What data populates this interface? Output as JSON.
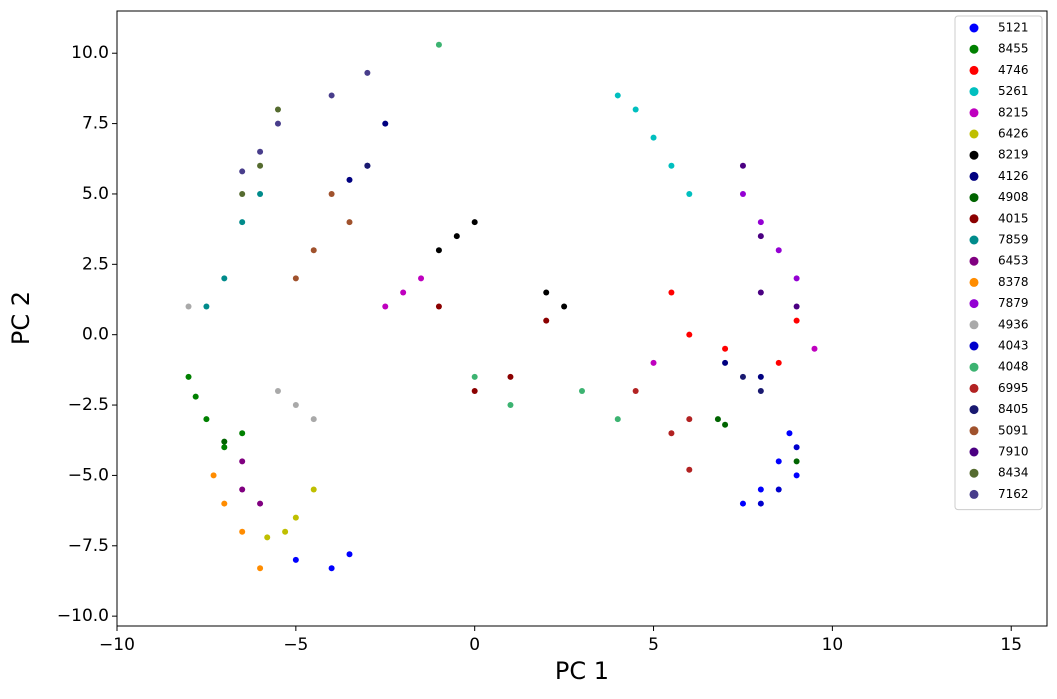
{
  "chart_data": {
    "type": "scatter",
    "x_label": "PC 1",
    "y_label": "PC 2",
    "xlim": [
      -10,
      16
    ],
    "ylim": [
      -10.35,
      11.5
    ],
    "xticks": [
      {
        "value": -10,
        "label": "−10"
      },
      {
        "value": -5,
        "label": "−5"
      },
      0,
      5,
      10,
      15
    ],
    "yticks": [
      {
        "value": -10,
        "label": "−10.0"
      },
      {
        "value": -7.5,
        "label": "−7.5"
      },
      {
        "value": -5,
        "label": "−5.0"
      },
      {
        "value": -2.5,
        "label": "−2.5"
      },
      {
        "value": 0,
        "label": "0.0"
      },
      2.5,
      {
        "value": 5,
        "label": "5.0"
      },
      7.5,
      {
        "value": 10,
        "label": "10.0"
      }
    ],
    "legend": "upper right",
    "series": [
      {
        "name": "5121",
        "color": "#0000ff",
        "x": [
          8,
          8.5,
          9,
          7.5,
          8.8,
          -4,
          -3.5,
          -5
        ],
        "values": [
          -5.5,
          -4.5,
          -5,
          -6,
          -3.5,
          -8.3,
          -7.8,
          -8
        ]
      },
      {
        "name": "8455",
        "color": "#008000",
        "x": [
          -7.5,
          -7,
          -8,
          -6.5,
          -7.8
        ],
        "values": [
          -3,
          -4,
          -1.5,
          -3.5,
          -2.2
        ]
      },
      {
        "name": "4746",
        "color": "#ff0000",
        "x": [
          6,
          7,
          9,
          5.5,
          8.5
        ],
        "values": [
          0,
          -0.5,
          0.5,
          1.5,
          -1
        ]
      },
      {
        "name": "5261",
        "color": "#00bfbf",
        "x": [
          4.5,
          5,
          5.5,
          4,
          6
        ],
        "values": [
          8,
          7,
          6,
          8.5,
          5
        ]
      },
      {
        "name": "8215",
        "color": "#bf00bf",
        "x": [
          -2,
          -1.5,
          -2.5,
          9.5,
          5
        ],
        "values": [
          1.5,
          2,
          1,
          -0.5,
          -1
        ]
      },
      {
        "name": "6426",
        "color": "#bfbf00",
        "x": [
          -5.3,
          -5,
          -4.5,
          -5.8
        ],
        "values": [
          -7,
          -6.5,
          -5.5,
          -7.2
        ]
      },
      {
        "name": "8219",
        "color": "#000000",
        "x": [
          -0.5,
          0,
          -1,
          2,
          2.5
        ],
        "values": [
          3.5,
          4,
          3,
          1.5,
          1
        ]
      },
      {
        "name": "4126",
        "color": "#000080",
        "x": [
          -2.5,
          -3,
          -3.5,
          8,
          7
        ],
        "values": [
          7.5,
          6,
          5.5,
          -1.5,
          -1
        ]
      },
      {
        "name": "4908",
        "color": "#006400",
        "x": [
          7,
          6.8,
          9,
          -7
        ],
        "values": [
          -3.2,
          -3,
          -4.5,
          -3.8
        ]
      },
      {
        "name": "4015",
        "color": "#8b0000",
        "x": [
          0,
          1,
          -1,
          2
        ],
        "values": [
          -2,
          -1.5,
          1,
          0.5
        ]
      },
      {
        "name": "7859",
        "color": "#008b8b",
        "x": [
          -6.5,
          -7,
          -6,
          -7.5
        ],
        "values": [
          4,
          2,
          5,
          1
        ]
      },
      {
        "name": "6453",
        "color": "#800080",
        "x": [
          -6.5,
          -6,
          -6.5
        ],
        "values": [
          -5.5,
          -6,
          -4.5
        ]
      },
      {
        "name": "8378",
        "color": "#ff8c00",
        "x": [
          -7,
          -7.3,
          -6.5,
          -6
        ],
        "values": [
          -6,
          -5,
          -7,
          -8.3
        ]
      },
      {
        "name": "7879",
        "color": "#9400d3",
        "x": [
          8,
          8.5,
          7.5,
          9
        ],
        "values": [
          4,
          3,
          5,
          2
        ]
      },
      {
        "name": "4936",
        "color": "#a9a9a9",
        "x": [
          -5,
          -4.5,
          -8,
          -5.5
        ],
        "values": [
          -2.5,
          -3,
          1,
          -2
        ]
      },
      {
        "name": "4043",
        "color": "#0000cd",
        "x": [
          8.5,
          9,
          8
        ],
        "values": [
          -5.5,
          -4,
          -6
        ]
      },
      {
        "name": "4048",
        "color": "#3cb371",
        "x": [
          1,
          3,
          -1,
          4,
          0
        ],
        "values": [
          -2.5,
          -2,
          10.3,
          -3,
          -1.5
        ]
      },
      {
        "name": "6995",
        "color": "#b22222",
        "x": [
          6,
          5.5,
          6,
          4.5
        ],
        "values": [
          -4.8,
          -3.5,
          -3,
          -2
        ]
      },
      {
        "name": "8405",
        "color": "#191970",
        "x": [
          7.5,
          8,
          -3
        ],
        "values": [
          -1.5,
          -2,
          6
        ]
      },
      {
        "name": "5091",
        "color": "#a0522d",
        "x": [
          -4,
          -4.5,
          -3.5,
          -5
        ],
        "values": [
          5,
          3,
          4,
          2
        ]
      },
      {
        "name": "7910",
        "color": "#4b0082",
        "x": [
          8,
          7.5,
          9,
          8
        ],
        "values": [
          3.5,
          6,
          1,
          1.5
        ]
      },
      {
        "name": "8434",
        "color": "#556b2f",
        "x": [
          -6.5,
          -5.5,
          -6
        ],
        "values": [
          5,
          8,
          6
        ]
      },
      {
        "name": "7162",
        "color": "#483d8b",
        "x": [
          -6,
          -5.5,
          -4,
          -3,
          -6.5
        ],
        "values": [
          6.5,
          7.5,
          8.5,
          9.3,
          5.8
        ]
      }
    ]
  }
}
